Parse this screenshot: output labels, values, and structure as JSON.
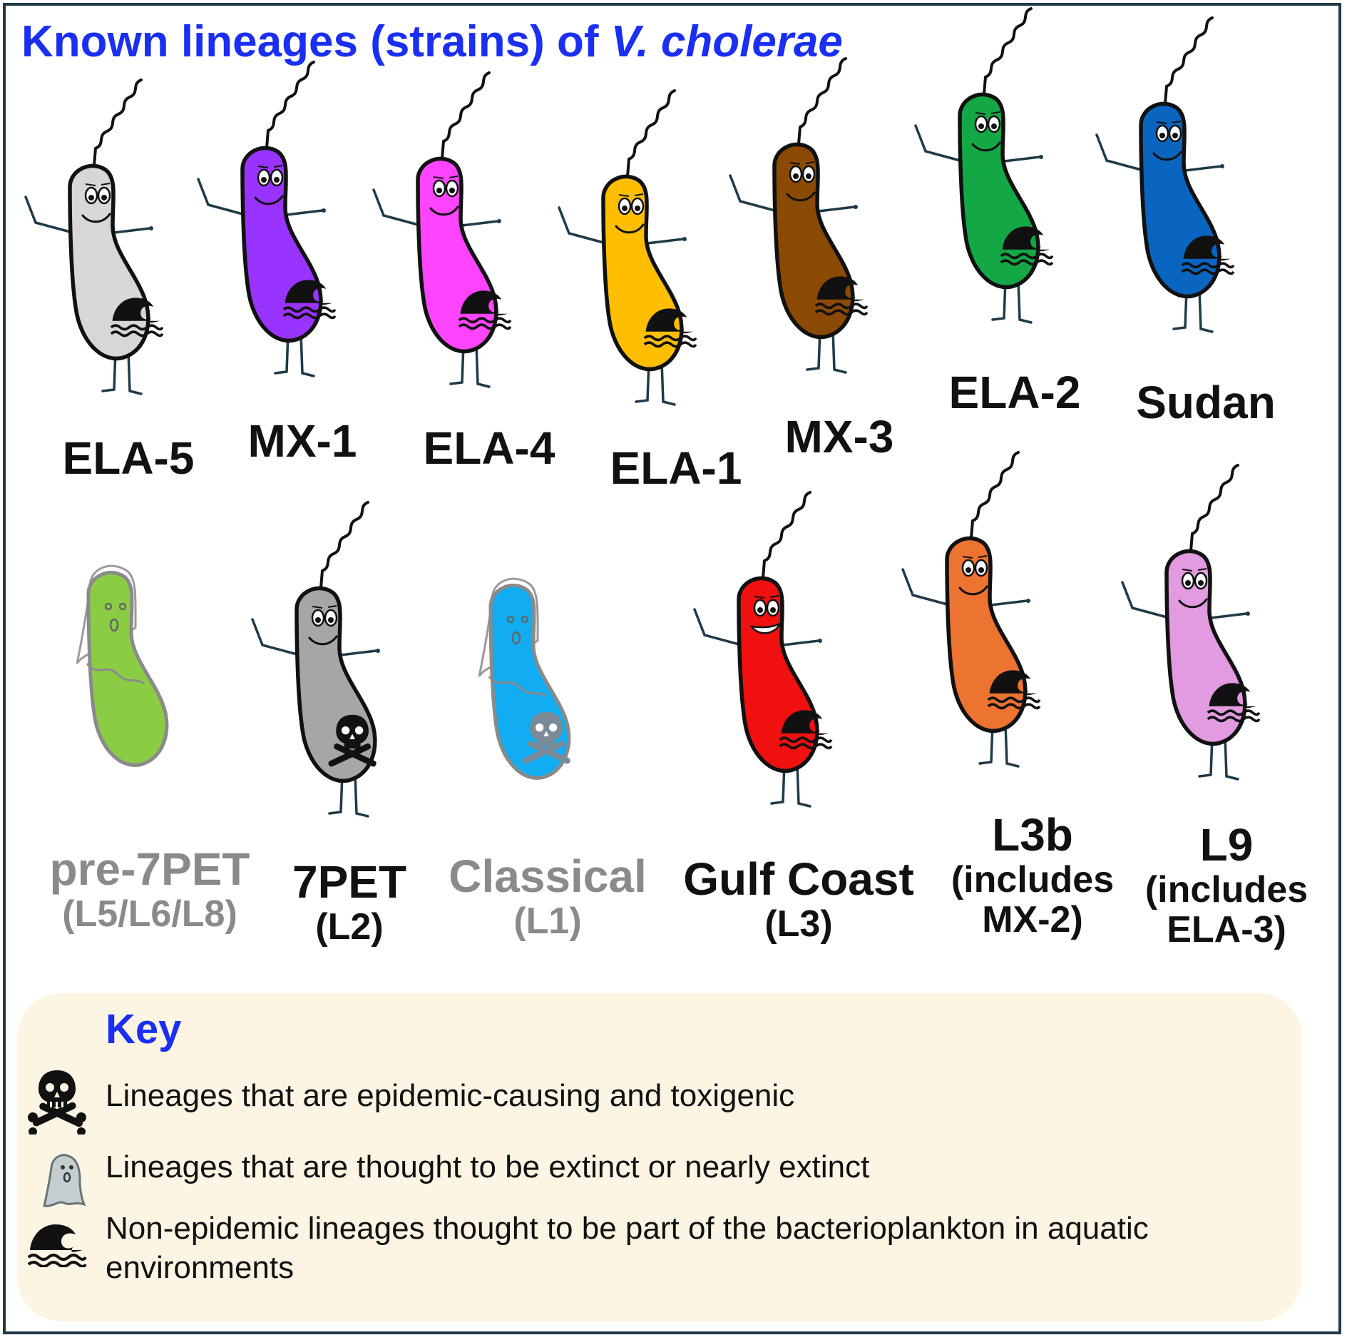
{
  "title": {
    "main": "Known lineages (strains) of ",
    "species": "V. cholerae"
  },
  "lineages": [
    {
      "name": "ELA-5",
      "color": "#d7d7d7",
      "status": "aquatic"
    },
    {
      "name": "MX-1",
      "color": "#9933ff",
      "status": "aquatic"
    },
    {
      "name": "ELA-4",
      "color": "#ff44ff",
      "status": "aquatic"
    },
    {
      "name": "ELA-1",
      "color": "#ffbf00",
      "status": "aquatic"
    },
    {
      "name": "MX-3",
      "color": "#8b4a03",
      "status": "aquatic"
    },
    {
      "name": "ELA-2",
      "color": "#13a845",
      "status": "aquatic"
    },
    {
      "name": "Sudan",
      "color": "#0a65c0",
      "status": "aquatic"
    },
    {
      "name": "pre-7PET",
      "sub1": "(L5/L6/L8)",
      "color": "#8bcc45",
      "status": "extinct"
    },
    {
      "name": "7PET",
      "sub1": "(L2)",
      "color": "#a6a6a6",
      "status": "epidemic"
    },
    {
      "name": "Classical",
      "sub1": "(L1)",
      "color": "#11acf2",
      "status": "extinct-epidemic"
    },
    {
      "name": "Gulf Coast",
      "sub1": "(L3)",
      "color": "#f01010",
      "status": "aquatic"
    },
    {
      "name": "L3b",
      "sub1": "(includes",
      "sub2": "MX-2)",
      "color": "#ed7330",
      "status": "aquatic"
    },
    {
      "name": "L9",
      "sub1": "(includes",
      "sub2": "ELA-3)",
      "color": "#e29ae0",
      "status": "aquatic"
    }
  ],
  "key": {
    "title": "Key",
    "items": [
      {
        "icon": "skull-crossbones-icon",
        "text": "Lineages that are epidemic-causing and toxigenic"
      },
      {
        "icon": "ghost-icon",
        "text": "Lineages that are thought to be extinct or nearly extinct"
      },
      {
        "icon": "wave-icon",
        "text": "Non-epidemic lineages thought to be part of the bacterioplankton in aquatic environments"
      }
    ]
  }
}
